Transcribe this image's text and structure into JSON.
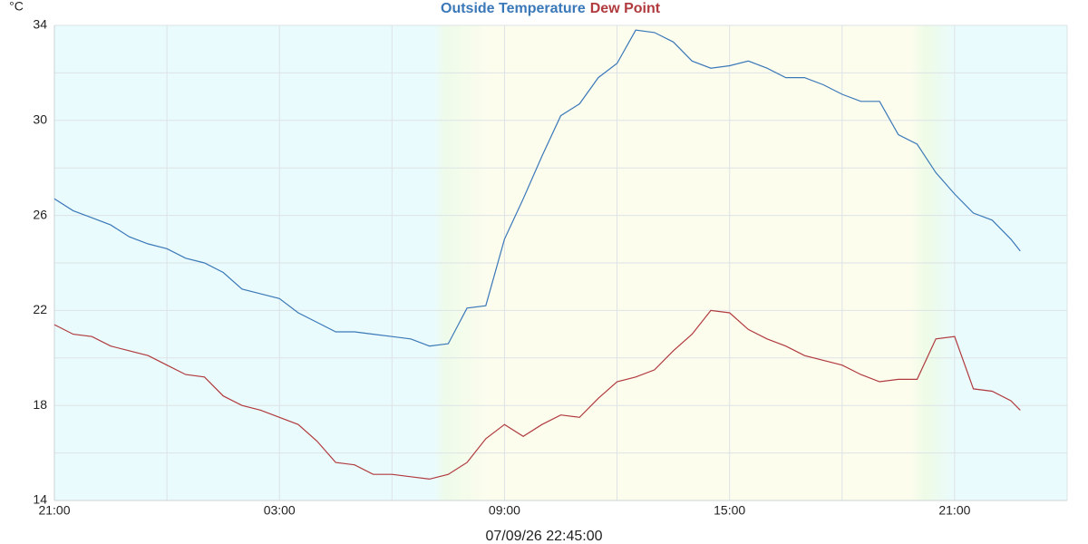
{
  "chart_data": {
    "type": "line",
    "y_label": "°C",
    "x_label": "07/09/26 22:45:00",
    "x": [
      0,
      0.5,
      1,
      1.5,
      2,
      2.5,
      3,
      3.5,
      4,
      4.5,
      5,
      5.5,
      6,
      6.5,
      7,
      7.5,
      8,
      8.5,
      9,
      9.5,
      10,
      10.5,
      11,
      11.5,
      12,
      12.5,
      13,
      13.5,
      14,
      14.5,
      15,
      15.5,
      16,
      16.5,
      17,
      17.5,
      18,
      18.5,
      19,
      19.5,
      20,
      20.5,
      21,
      21.5,
      22,
      22.5,
      23,
      23.5,
      24,
      24.5,
      25,
      25.5,
      25.75
    ],
    "series": [
      {
        "name": "Outside Temperature",
        "color": "#3a78b8",
        "values": [
          26.7,
          26.2,
          25.9,
          25.6,
          25.1,
          24.8,
          24.6,
          24.2,
          24.0,
          23.6,
          22.9,
          22.7,
          22.5,
          21.9,
          21.5,
          21.1,
          21.1,
          21.0,
          20.9,
          20.8,
          20.5,
          20.6,
          22.1,
          22.2,
          25.0,
          26.7,
          28.5,
          30.2,
          30.7,
          31.8,
          32.4,
          33.8,
          33.7,
          33.3,
          32.5,
          32.2,
          32.3,
          32.5,
          32.2,
          31.8,
          31.8,
          31.5,
          31.1,
          30.8,
          30.8,
          29.4,
          29.0,
          27.8,
          26.9,
          26.1,
          25.8,
          25.0,
          24.5
        ]
      },
      {
        "name": "Dew Point",
        "color": "#b03a3e",
        "values": [
          21.4,
          21.0,
          20.9,
          20.5,
          20.3,
          20.1,
          19.7,
          19.3,
          19.2,
          18.4,
          18.0,
          17.8,
          17.5,
          17.2,
          16.5,
          15.6,
          15.5,
          15.1,
          15.1,
          15.0,
          14.9,
          15.1,
          15.6,
          16.6,
          17.2,
          16.7,
          17.2,
          17.6,
          17.5,
          18.3,
          19.0,
          19.2,
          19.5,
          20.3,
          21.0,
          22.0,
          21.9,
          21.2,
          20.8,
          20.5,
          20.1,
          19.9,
          19.7,
          19.3,
          19.0,
          19.1,
          19.1,
          20.8,
          20.9,
          18.7,
          18.6,
          18.2,
          17.8
        ]
      }
    ],
    "xlim": [
      0,
      27
    ],
    "xticks": [
      {
        "value": 0,
        "label": "21:00"
      },
      {
        "value": 6,
        "label": "03:00"
      },
      {
        "value": 12,
        "label": "09:00"
      },
      {
        "value": 18,
        "label": "15:00"
      },
      {
        "value": 24,
        "label": "21:00"
      }
    ],
    "ylim": [
      14,
      34
    ],
    "yticks": [
      14,
      18,
      22,
      26,
      30,
      34
    ],
    "grid": true
  }
}
